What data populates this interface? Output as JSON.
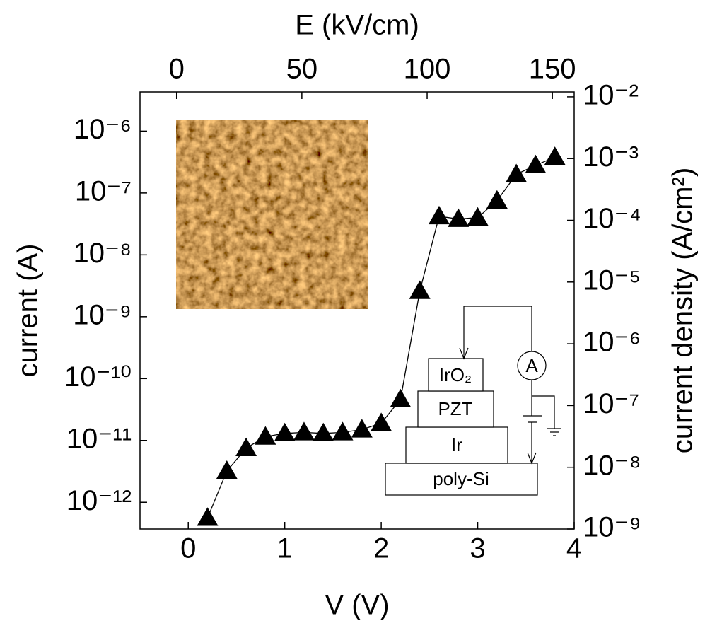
{
  "chart_data": {
    "type": "line",
    "xlabel": "V (V)",
    "ylabel": "current (A)",
    "x2label": "E (kV/cm)",
    "y2label": "current density (A/cm²)",
    "x": [
      0.2,
      0.4,
      0.6,
      0.8,
      1.0,
      1.2,
      1.4,
      1.6,
      1.8,
      2.0,
      2.2,
      2.4,
      2.6,
      2.8,
      3.0,
      3.2,
      3.4,
      3.6,
      3.8
    ],
    "values": [
      5.6e-13,
      3.2e-12,
      7.5e-12,
      1.15e-11,
      1.3e-11,
      1.35e-11,
      1.3e-11,
      1.35e-11,
      1.5e-11,
      1.9e-11,
      4.6e-11,
      2.6e-09,
      4.2e-08,
      3.8e-08,
      4e-08,
      7.5e-08,
      2e-07,
      2.8e-07,
      3.8e-07
    ],
    "color": "#000000",
    "marker": "triangle",
    "xlim": [
      -0.5,
      4
    ],
    "xticks": [
      0,
      1,
      2,
      3,
      4
    ],
    "x2lim": [
      -14.6,
      158.7
    ],
    "x2ticks": [
      0,
      50,
      100,
      150
    ],
    "ylim": [
      3.7e-13,
      4.3e-06
    ],
    "yscale": "log",
    "yticks": [
      {
        "value": 1e-12,
        "label": "10⁻¹²"
      },
      {
        "value": 1e-11,
        "label": "10⁻¹¹"
      },
      {
        "value": 1e-10,
        "label": "10⁻¹⁰"
      },
      {
        "value": 1e-09,
        "label": "10⁻⁹"
      },
      {
        "value": 1e-08,
        "label": "10⁻⁸"
      },
      {
        "value": 1e-07,
        "label": "10⁻⁷"
      },
      {
        "value": 1e-06,
        "label": "10⁻⁶"
      }
    ],
    "y2lim": [
      1e-09,
      0.012
    ],
    "y2scale": "log",
    "y2ticks": [
      {
        "value": 1e-09,
        "label": "10⁻⁹"
      },
      {
        "value": 1e-08,
        "label": "10⁻⁸"
      },
      {
        "value": 1e-07,
        "label": "10⁻⁷"
      },
      {
        "value": 1e-06,
        "label": "10⁻⁶"
      },
      {
        "value": 1e-05,
        "label": "10⁻⁵"
      },
      {
        "value": 0.0001,
        "label": "10⁻⁴"
      },
      {
        "value": 0.001,
        "label": "10⁻³"
      },
      {
        "value": 0.01,
        "label": "10⁻²"
      }
    ],
    "grid": false,
    "annotations": [
      "IrO₂",
      "PZT",
      "Ir",
      "poly-Si",
      "A"
    ]
  }
}
